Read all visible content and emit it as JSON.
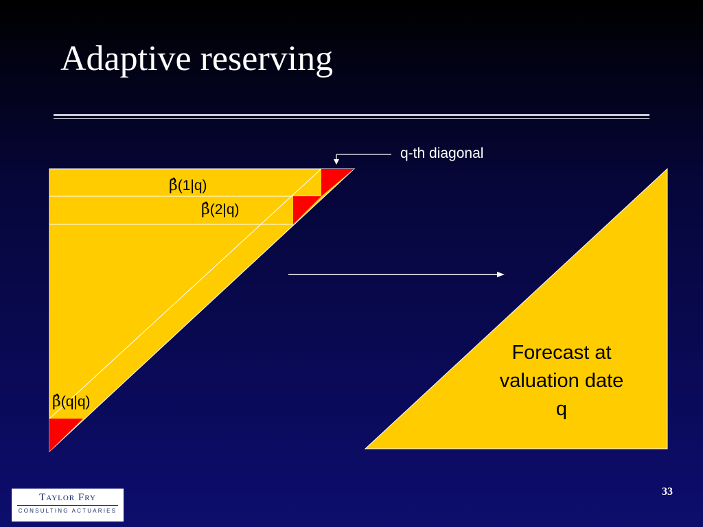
{
  "slide": {
    "title": "Adaptive reserving",
    "page_number": "33"
  },
  "diagram": {
    "left_triangle_row_labels": [
      {
        "symbol": "β̂",
        "label": "(1|q)"
      },
      {
        "symbol": "β̂",
        "label": "(2|q)"
      },
      {
        "symbol": "β̂",
        "label": "(q|q)"
      }
    ],
    "callout": "q-th diagonal",
    "right_triangle_text": [
      "Forecast at",
      "valuation date",
      "q"
    ],
    "colors": {
      "triangle_fill": "#ffcc00",
      "diagonal_cell": "#ff0000",
      "background": "#0d0d6e",
      "text_light": "#ffffff"
    }
  },
  "logo": {
    "name": "Taylor Fry",
    "tagline": "CONSULTING ACTUARIES"
  }
}
